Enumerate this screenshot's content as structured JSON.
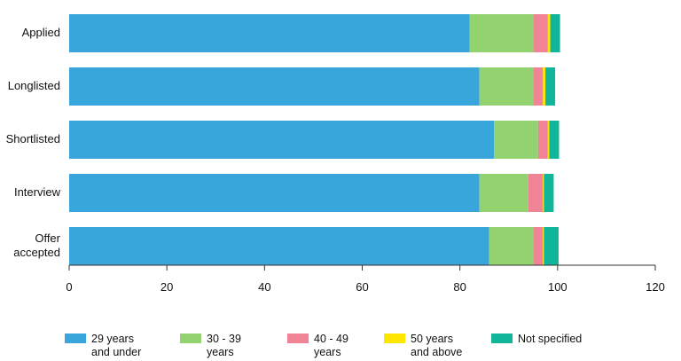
{
  "chart_data": {
    "type": "bar",
    "orientation": "horizontal",
    "stacked": true,
    "categories": [
      [
        "Applied"
      ],
      [
        "Longlisted"
      ],
      [
        "Shortlisted"
      ],
      [
        "Interview"
      ],
      [
        "Offer",
        "accepted"
      ]
    ],
    "series": [
      {
        "name": [
          "29 years",
          "and under"
        ],
        "color": "#39A6DB",
        "values": [
          82,
          84,
          87,
          84,
          86
        ]
      },
      {
        "name": [
          "30 - 39",
          "years"
        ],
        "color": "#92D26F",
        "values": [
          13,
          11,
          9,
          10,
          9
        ]
      },
      {
        "name": [
          "40 - 49",
          "years"
        ],
        "color": "#F08496",
        "values": [
          3,
          2,
          2,
          3,
          2
        ]
      },
      {
        "name": [
          "50 years",
          "and above"
        ],
        "color": "#FFE600",
        "values": [
          0.5,
          0.5,
          0.3,
          0.2,
          0.2
        ]
      },
      {
        "name": [
          "Not specified"
        ],
        "color": "#10B59A",
        "values": [
          2,
          2,
          2,
          2,
          3
        ]
      }
    ],
    "xlim": [
      0,
      120
    ],
    "xticks": [
      "0",
      "20",
      "40",
      "60",
      "80",
      "100",
      "120"
    ],
    "legend_position": "bottom",
    "grid": false
  }
}
